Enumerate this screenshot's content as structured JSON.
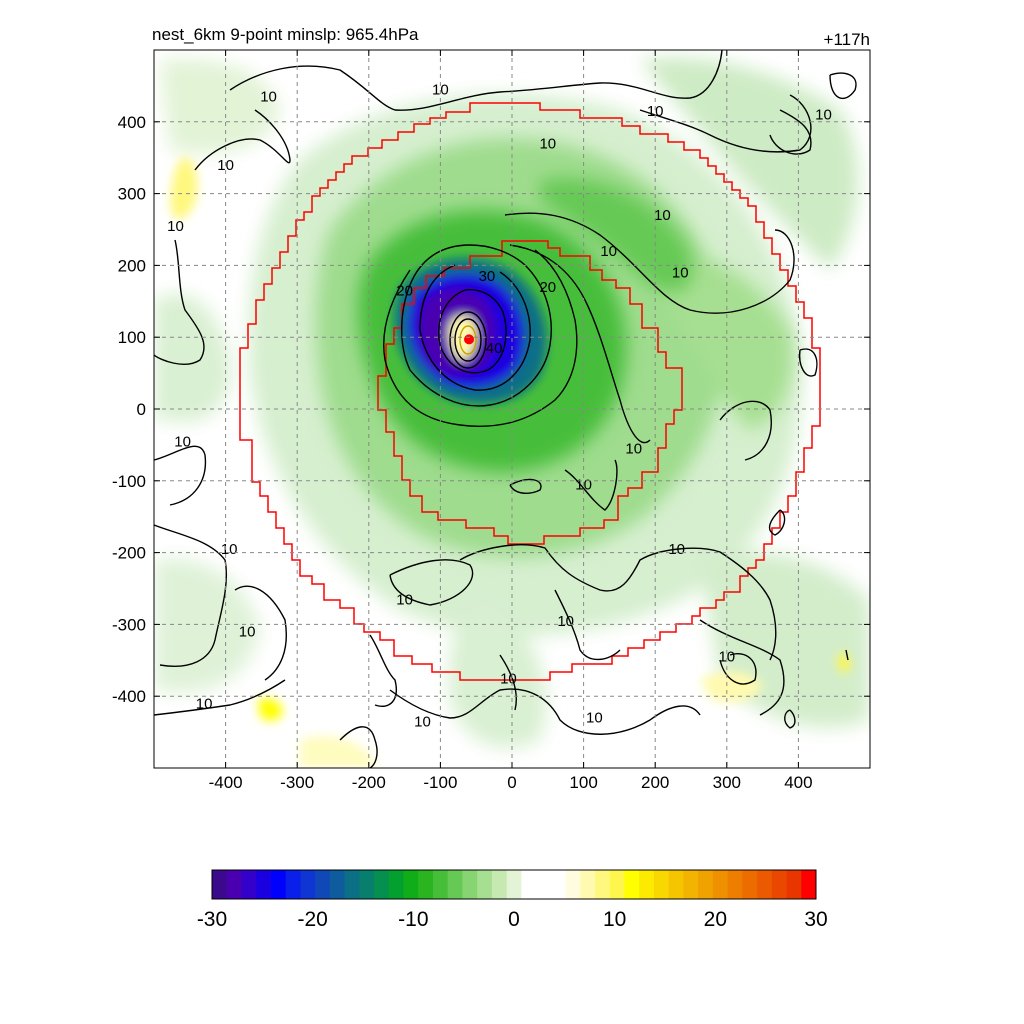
{
  "chart_data": {
    "type": "heatmap",
    "title": "nest_6km  9-point minslp: 965.4hPa",
    "time_label": "+117h",
    "xlim": [
      -500,
      500
    ],
    "ylim": [
      -500,
      500
    ],
    "x_ticks": [
      -400,
      -300,
      -200,
      -100,
      0,
      100,
      200,
      300,
      400
    ],
    "y_ticks": [
      -400,
      -300,
      -200,
      -100,
      0,
      100,
      200,
      300,
      400
    ],
    "grid": true,
    "center": {
      "x": -60,
      "y": 97
    },
    "colorbar": {
      "min": -30,
      "max": 30,
      "ticks": [
        -30,
        -20,
        -10,
        0,
        10,
        20,
        30
      ],
      "colors": [
        "#3b0a8c",
        "#4a00b0",
        "#3300cc",
        "#1a00e0",
        "#0000ff",
        "#0a1fea",
        "#0f35d2",
        "#1048b8",
        "#0e5c9e",
        "#0b6f86",
        "#087f6c",
        "#059050",
        "#03a030",
        "#10ad18",
        "#2ab520",
        "#47be3a",
        "#66c955",
        "#86d472",
        "#a6df91",
        "#c5e9b1",
        "#e2f3d6",
        "#ffffff",
        "#ffffff",
        "#ffffff",
        "#fffce0",
        "#fffaaf",
        "#fff87e",
        "#fff64d",
        "#ffff00",
        "#fcea00",
        "#f8d800",
        "#f5c600",
        "#f2b400",
        "#f0a200",
        "#ee9000",
        "#ed7e00",
        "#ec6c00",
        "#eb5a00",
        "#ea4800",
        "#e93600",
        "#ff0000"
      ]
    },
    "contour_labels": [
      {
        "x": -340,
        "y": 435,
        "text": "10"
      },
      {
        "x": -100,
        "y": 445,
        "text": "10"
      },
      {
        "x": -400,
        "y": 340,
        "text": "10"
      },
      {
        "x": 50,
        "y": 370,
        "text": "10"
      },
      {
        "x": 200,
        "y": 415,
        "text": "10"
      },
      {
        "x": 435,
        "y": 410,
        "text": "10"
      },
      {
        "x": -470,
        "y": 255,
        "text": "10"
      },
      {
        "x": 210,
        "y": 270,
        "text": "10"
      },
      {
        "x": 135,
        "y": 220,
        "text": "10"
      },
      {
        "x": 235,
        "y": 190,
        "text": "10"
      },
      {
        "x": -35,
        "y": 185,
        "text": "30"
      },
      {
        "x": -150,
        "y": 165,
        "text": "20"
      },
      {
        "x": 50,
        "y": 170,
        "text": "20"
      },
      {
        "x": -25,
        "y": 85,
        "text": "40"
      },
      {
        "x": 170,
        "y": -55,
        "text": "10"
      },
      {
        "x": -460,
        "y": -45,
        "text": "10"
      },
      {
        "x": 100,
        "y": -105,
        "text": "10"
      },
      {
        "x": -395,
        "y": -195,
        "text": "10"
      },
      {
        "x": 230,
        "y": -195,
        "text": "10"
      },
      {
        "x": -150,
        "y": -265,
        "text": "10"
      },
      {
        "x": -370,
        "y": -310,
        "text": "10"
      },
      {
        "x": 75,
        "y": -295,
        "text": "10"
      },
      {
        "x": 300,
        "y": -345,
        "text": "10"
      },
      {
        "x": -5,
        "y": -375,
        "text": "10"
      },
      {
        "x": -430,
        "y": -410,
        "text": "10"
      },
      {
        "x": -125,
        "y": -435,
        "text": "10"
      },
      {
        "x": 115,
        "y": -430,
        "text": "10"
      }
    ]
  }
}
